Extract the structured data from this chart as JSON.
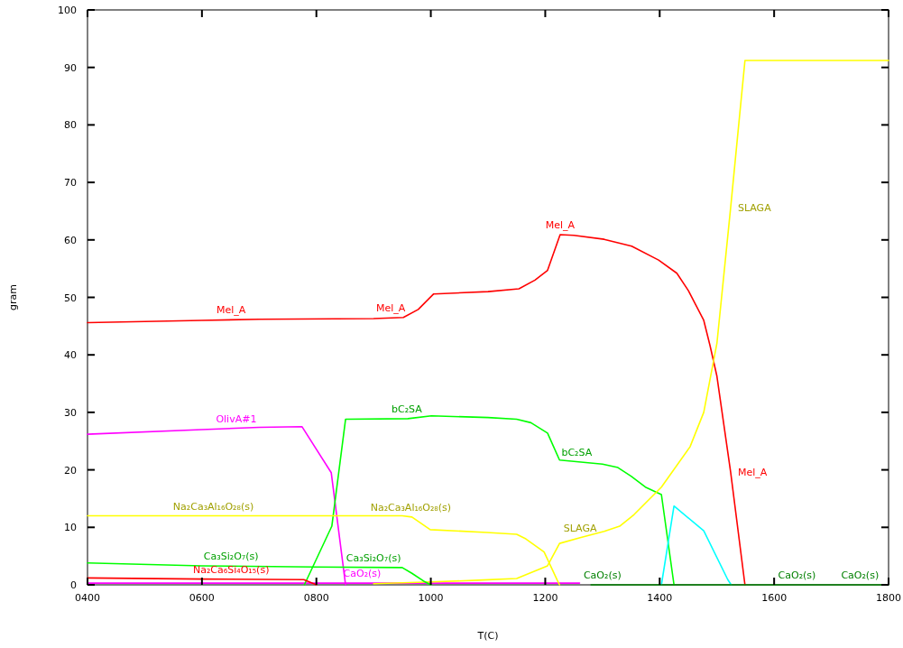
{
  "chart_data": {
    "type": "line",
    "xlabel": "T(C)",
    "ylabel": "gram",
    "xlim": [
      400,
      1800
    ],
    "xticks": [
      {
        "value": 400,
        "label": "0400"
      },
      {
        "value": 600,
        "label": "0600"
      },
      {
        "value": 800,
        "label": "0800"
      },
      1000,
      1200,
      1400,
      1600,
      1800
    ],
    "ylim": [
      0,
      100
    ],
    "yticks": [
      0,
      10,
      20,
      30,
      40,
      50,
      60,
      70,
      80,
      90,
      100
    ],
    "grid": false,
    "marker": "none",
    "line_style": "solid",
    "series": [
      {
        "color": "#ff0000",
        "x": [
          400,
          600,
          700,
          900,
          952,
          978,
          1005,
          1100,
          1154,
          1182,
          1204,
          1226,
          1250,
          1303,
          1351,
          1398,
          1430,
          1450,
          1477,
          1488,
          1500,
          1524,
          1549
        ],
        "values": [
          45.6,
          46.0,
          46.2,
          46.3,
          46.5,
          47.9,
          50.6,
          51.0,
          51.5,
          53.0,
          54.7,
          60.9,
          60.8,
          60.1,
          58.9,
          56.5,
          54.2,
          51.2,
          46.0,
          41.6,
          36.3,
          19.6,
          0
        ]
      },
      {
        "color": "#ff00ff",
        "x": [
          400,
          600,
          700,
          775,
          826,
          851
        ],
        "values": [
          26.2,
          27.0,
          27.4,
          27.5,
          19.5,
          0
        ]
      },
      {
        "color": "#ff00ff",
        "x": [
          400,
          1260
        ],
        "values": [
          0.3,
          0.3
        ]
      },
      {
        "color": "#00ff00",
        "x": [
          779,
          827,
          851,
          960,
          1001,
          1100,
          1150,
          1175,
          1204,
          1225,
          1300,
          1327,
          1350,
          1375,
          1403,
          1425
        ],
        "values": [
          0,
          10.2,
          28.8,
          28.9,
          29.4,
          29.1,
          28.8,
          28.2,
          26.4,
          21.7,
          21.0,
          20.4,
          18.9,
          17.0,
          15.7,
          0
        ]
      },
      {
        "color": "#ffff00",
        "x": [
          400,
          950,
          967,
          999,
          1098,
          1150,
          1166,
          1198,
          1221,
          1225
        ],
        "values": [
          12,
          12,
          11.8,
          9.6,
          9.1,
          8.8,
          8.0,
          5.7,
          0.8,
          0
        ]
      },
      {
        "color": "#ffff00",
        "x": [
          900,
          1000,
          1083,
          1150,
          1204,
          1225,
          1261,
          1303,
          1330,
          1355,
          1403,
          1453,
          1477,
          1500,
          1524,
          1549,
          1800
        ],
        "values": [
          0.2,
          0.5,
          0.8,
          1.1,
          3.3,
          7.2,
          8.2,
          9.3,
          10.2,
          12.2,
          17,
          24,
          30,
          42,
          65.6,
          91.2,
          91.2
        ]
      },
      {
        "color": "#00ffff",
        "x": [
          1403,
          1425,
          1477,
          1519,
          1525
        ],
        "values": [
          0,
          13.7,
          9.4,
          0.9,
          0
        ]
      },
      {
        "color": "#00ff00",
        "x": [
          400,
          600,
          800,
          950,
          967,
          990,
          1000
        ],
        "values": [
          3.8,
          3.3,
          3.1,
          3.0,
          2.0,
          0.5,
          0
        ]
      },
      {
        "color": "#ff0000",
        "x": [
          400,
          600,
          778,
          800
        ],
        "values": [
          1.2,
          1.0,
          0.9,
          0
        ]
      },
      {
        "color": "#008000",
        "x": [
          1280,
          1800
        ],
        "values": [
          0,
          0
        ]
      }
    ],
    "annotations": [
      {
        "text": "Mel_A",
        "x": 651,
        "y": 46.1
      },
      {
        "text": "Mel_A",
        "x": 930,
        "y": 46.4
      },
      {
        "text": "Mel_A",
        "x": 1226,
        "y": 60.9
      },
      {
        "text": "Mel_A",
        "x": 1524,
        "y": 19.6
      },
      {
        "text": "OlivA#1",
        "x": 660,
        "y": 27.2
      },
      {
        "text": "bC₂SA",
        "x": 958,
        "y": 28.9
      },
      {
        "text": "bC₂SA",
        "x": 1255,
        "y": 21.4
      },
      {
        "text": "Na₂Ca₃Al₁₆O₂₈(s)",
        "x": 620,
        "y": 12
      },
      {
        "text": "Na₂Ca₃Al₁₆O₂₈(s)",
        "x": 965,
        "y": 11.8
      },
      {
        "text": "SLAGA",
        "x": 1261,
        "y": 8.2
      },
      {
        "text": "SLAGA",
        "x": 1524,
        "y": 65.6
      },
      {
        "text": "Ca₃Si₂O₇(s)",
        "x": 651,
        "y": 3.3
      },
      {
        "text": "Ca₃Si₂O₇(s)",
        "x": 900,
        "y": 3.0
      },
      {
        "text": "Na₂Ca₆Si₄O₁₅(s)",
        "x": 651,
        "y": 1.0
      },
      {
        "text": "CaO₂(s)",
        "x": 880,
        "y": 0.3
      },
      {
        "text": "CaO₂(s)",
        "x": 1300,
        "y": 0
      },
      {
        "text": "CaO₂(s)",
        "x": 1640,
        "y": 0
      },
      {
        "text": "CaO₂(s)",
        "x": 1750,
        "y": 0
      }
    ]
  }
}
